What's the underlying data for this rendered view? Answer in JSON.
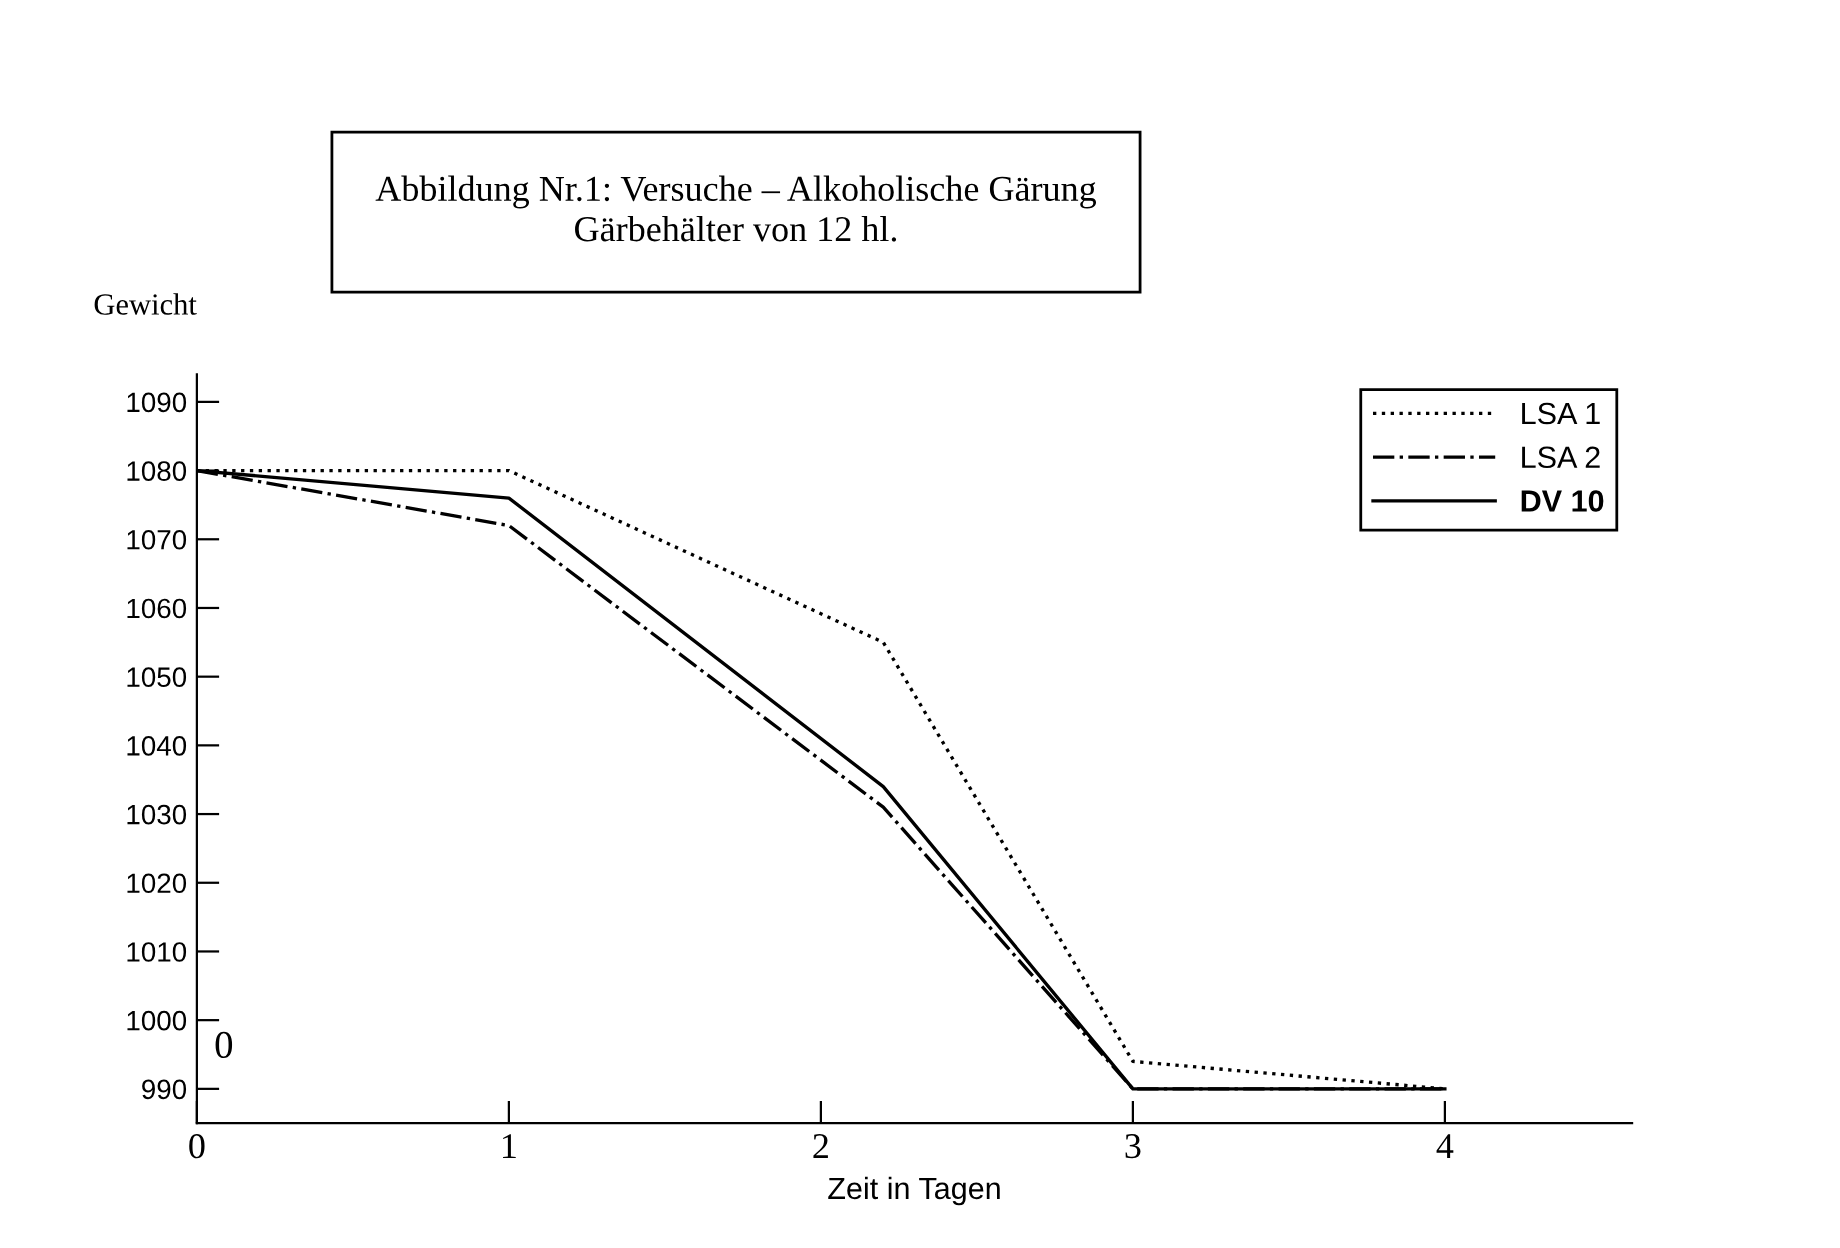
{
  "chart_data": {
    "type": "line",
    "title": "Abbildung Nr.1: Versuche – Alkoholische Gärung\nGärbehälter von 12 hl.",
    "xlabel": "Zeit in Tagen",
    "ylabel": "Gewicht",
    "x": [
      0,
      1,
      2.2,
      3,
      4
    ],
    "series": [
      {
        "name": "LSA 1",
        "color": "#000000",
        "line_style": "dotted",
        "values": [
          1080,
          1080,
          1055,
          994,
          990
        ]
      },
      {
        "name": "LSA 2",
        "color": "#000000",
        "line_style": "dashdot",
        "values": [
          1080,
          1072,
          1031,
          990,
          990
        ]
      },
      {
        "name": "DV 10",
        "color": "#000000",
        "line_style": "solid",
        "values": [
          1080,
          1076,
          1034,
          990,
          990
        ]
      }
    ],
    "xlim": [
      0,
      4.6
    ],
    "xticks": [
      0,
      1,
      2,
      3,
      4
    ],
    "ylim": [
      985,
      1094
    ],
    "yticks": [
      990,
      1000,
      1010,
      1020,
      1030,
      1040,
      1050,
      1060,
      1070,
      1080,
      1090
    ],
    "annotations": [
      "0"
    ],
    "legend": "top right",
    "grid": false,
    "marker": "none"
  }
}
